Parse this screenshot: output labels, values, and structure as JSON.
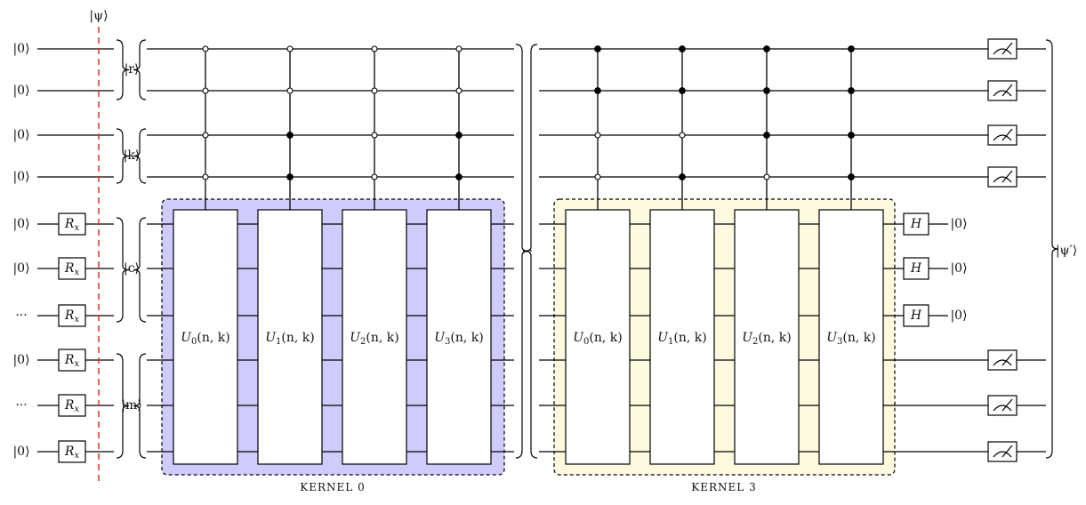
{
  "psi_label": "|ψ⟩",
  "psi_out_label": "|ψ′⟩",
  "ket_zero": "|0⟩",
  "ellipsis": "···",
  "input_labels": [
    "|0⟩",
    "|0⟩",
    "|0⟩",
    "|0⟩",
    "|0⟩",
    "|0⟩",
    "···",
    "|0⟩",
    "···",
    "|0⟩"
  ],
  "rx_gate": "R",
  "rx_sub": "x",
  "h_gate": "H",
  "register_labels": {
    "r": "|r⟩",
    "k": "|k⟩",
    "c": "|c⟩",
    "m": "|m⟩"
  },
  "kernel0": {
    "caption": "KERNEL 0",
    "unitaries": [
      "U0(n, k)",
      "U1(n, k)",
      "U2(n, k)",
      "U3(n, k)"
    ],
    "control_fill": [
      [
        false,
        false,
        false,
        false
      ],
      [
        false,
        false,
        false,
        false
      ],
      [
        false,
        true,
        false,
        true
      ],
      [
        false,
        true,
        false,
        true
      ]
    ]
  },
  "kernel3": {
    "caption": "KERNEL 3",
    "unitaries": [
      "U0(n, k)",
      "U1(n, k)",
      "U2(n, k)",
      "U3(n, k)"
    ],
    "control_fill": [
      [
        true,
        true,
        true,
        true
      ],
      [
        true,
        true,
        true,
        true
      ],
      [
        false,
        false,
        true,
        true
      ],
      [
        false,
        true,
        false,
        true
      ]
    ]
  },
  "colors": {
    "kernel0_fill": "#cfcbfb",
    "kernel3_fill": "#fdfadf",
    "barrier": "#e0302a",
    "wire": "#000000"
  },
  "output_icons": [
    "meter-icon",
    "meter-icon",
    "meter-icon",
    "meter-icon",
    "reset",
    "reset",
    "reset",
    "meter-icon",
    "meter-icon",
    "meter-icon"
  ]
}
